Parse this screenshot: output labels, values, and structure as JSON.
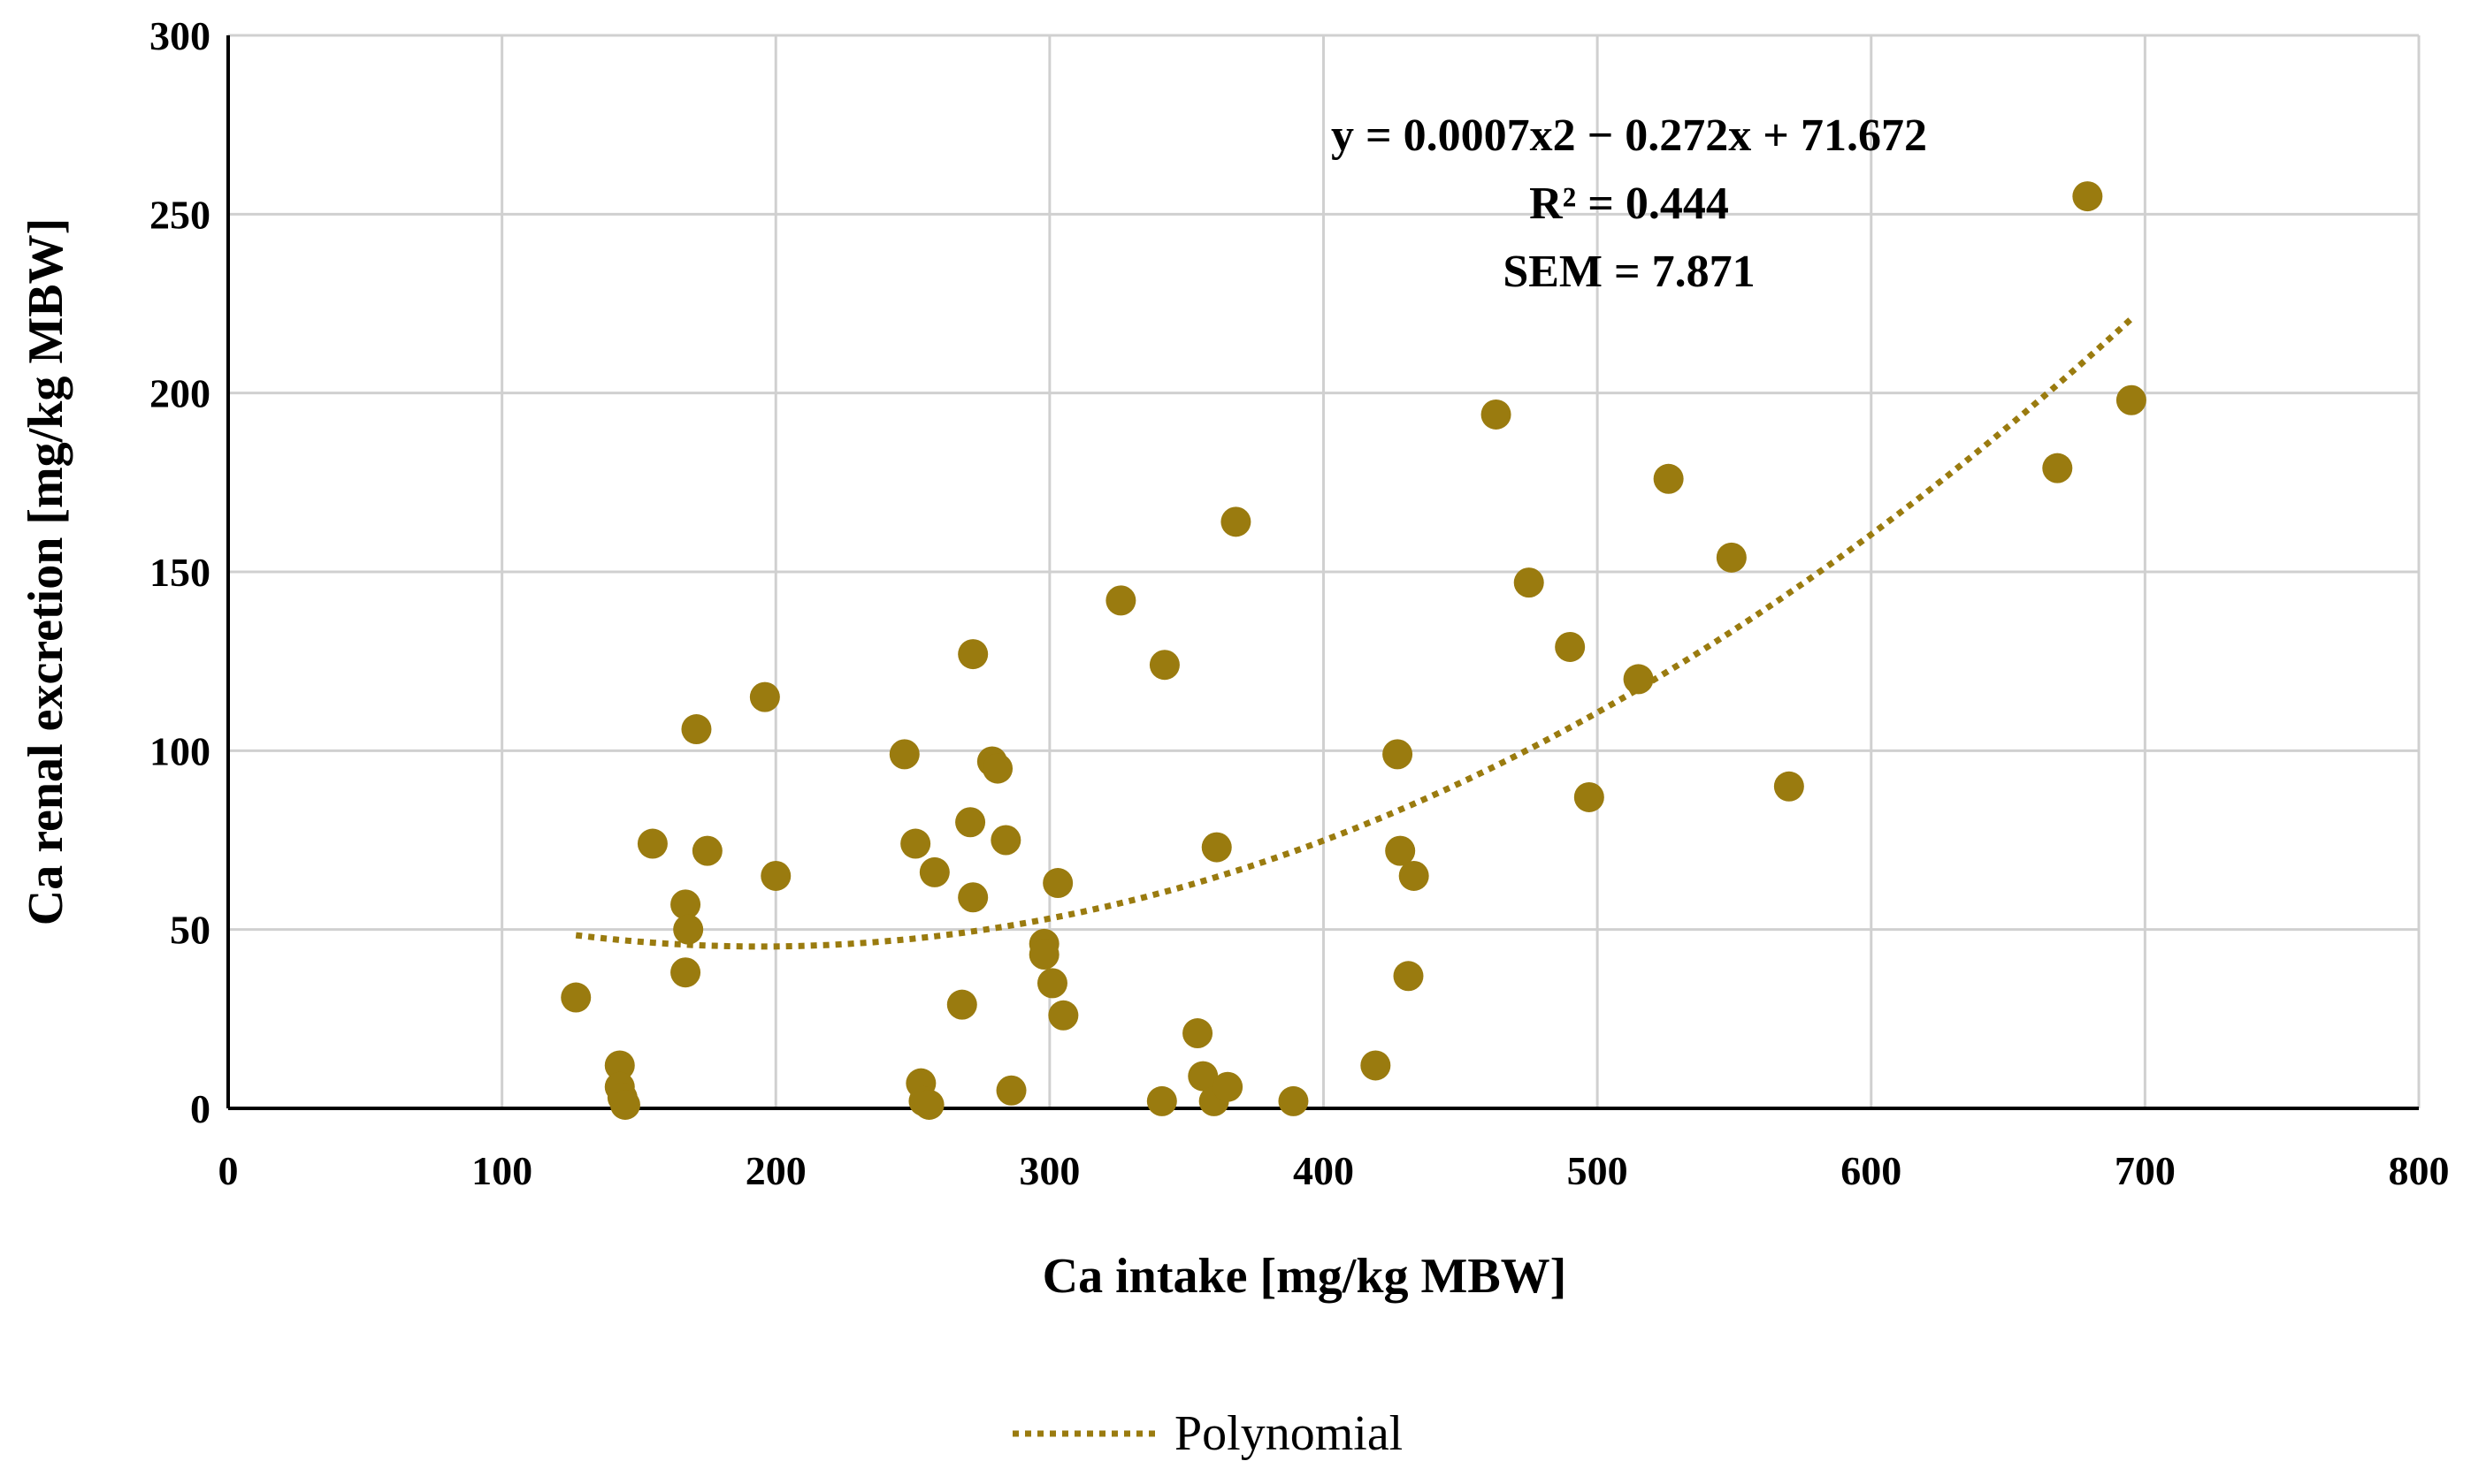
{
  "chart_data": {
    "type": "scatter",
    "title": "",
    "xlabel": "Ca intake [mg/kg MBW]",
    "ylabel": "Ca renal excretion [mg/kg MBW]",
    "xlim": [
      0,
      800
    ],
    "ylim": [
      0,
      300
    ],
    "x_ticks": [
      0,
      100,
      200,
      300,
      400,
      500,
      600,
      700,
      800
    ],
    "y_ticks": [
      0,
      50,
      100,
      150,
      200,
      250,
      300
    ],
    "grid": true,
    "legend_position": "bottom-center",
    "colors": {
      "points": "#9a7b0f",
      "trend": "#9a7b0f"
    },
    "points": [
      {
        "x": 127,
        "y": 31
      },
      {
        "x": 143,
        "y": 12
      },
      {
        "x": 143,
        "y": 6
      },
      {
        "x": 144,
        "y": 3
      },
      {
        "x": 145,
        "y": 1
      },
      {
        "x": 155,
        "y": 74
      },
      {
        "x": 167,
        "y": 57
      },
      {
        "x": 168,
        "y": 50
      },
      {
        "x": 167,
        "y": 38
      },
      {
        "x": 171,
        "y": 106
      },
      {
        "x": 175,
        "y": 72
      },
      {
        "x": 196,
        "y": 115
      },
      {
        "x": 200,
        "y": 65
      },
      {
        "x": 247,
        "y": 99
      },
      {
        "x": 251,
        "y": 74
      },
      {
        "x": 253,
        "y": 7
      },
      {
        "x": 254,
        "y": 2
      },
      {
        "x": 256,
        "y": 1
      },
      {
        "x": 258,
        "y": 66
      },
      {
        "x": 268,
        "y": 29
      },
      {
        "x": 271,
        "y": 80
      },
      {
        "x": 272,
        "y": 127
      },
      {
        "x": 272,
        "y": 59
      },
      {
        "x": 279,
        "y": 97
      },
      {
        "x": 281,
        "y": 95
      },
      {
        "x": 284,
        "y": 75
      },
      {
        "x": 286,
        "y": 5
      },
      {
        "x": 298,
        "y": 46
      },
      {
        "x": 298,
        "y": 43
      },
      {
        "x": 301,
        "y": 35
      },
      {
        "x": 303,
        "y": 63
      },
      {
        "x": 305,
        "y": 26
      },
      {
        "x": 326,
        "y": 142
      },
      {
        "x": 341,
        "y": 2
      },
      {
        "x": 342,
        "y": 124
      },
      {
        "x": 354,
        "y": 21
      },
      {
        "x": 356,
        "y": 9
      },
      {
        "x": 360,
        "y": 2
      },
      {
        "x": 361,
        "y": 73
      },
      {
        "x": 365,
        "y": 6
      },
      {
        "x": 368,
        "y": 164
      },
      {
        "x": 389,
        "y": 2
      },
      {
        "x": 419,
        "y": 12
      },
      {
        "x": 427,
        "y": 99
      },
      {
        "x": 428,
        "y": 72
      },
      {
        "x": 431,
        "y": 37
      },
      {
        "x": 433,
        "y": 65
      },
      {
        "x": 463,
        "y": 194
      },
      {
        "x": 475,
        "y": 147
      },
      {
        "x": 490,
        "y": 129
      },
      {
        "x": 497,
        "y": 87
      },
      {
        "x": 515,
        "y": 120
      },
      {
        "x": 526,
        "y": 176
      },
      {
        "x": 549,
        "y": 154
      },
      {
        "x": 570,
        "y": 90
      },
      {
        "x": 668,
        "y": 179
      },
      {
        "x": 679,
        "y": 255
      },
      {
        "x": 695,
        "y": 198
      }
    ],
    "trendline": {
      "type": "polynomial",
      "coefficients": [
        0.0007,
        -0.272,
        71.672
      ],
      "x_range": [
        127,
        695
      ],
      "equation": "y = 0.0007x2 − 0.272x + 71.672",
      "r_squared": "R² = 0.444",
      "sem": "SEM = 7.871"
    },
    "legend": [
      {
        "label": "Polynomial",
        "style": "dotted"
      }
    ]
  }
}
